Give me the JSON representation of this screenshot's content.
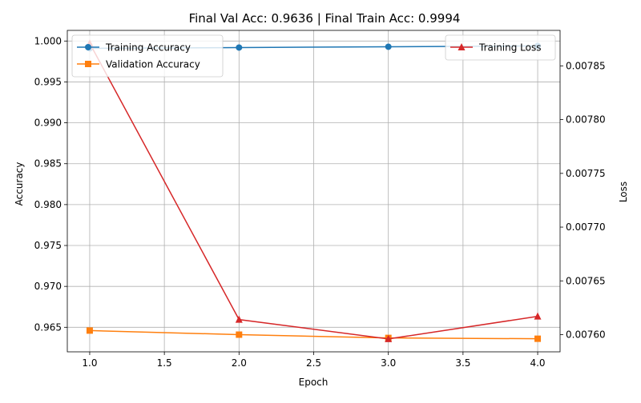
{
  "chart_data": {
    "type": "line",
    "title": "Final Val Acc: 0.9636 | Final Train Acc: 0.9994",
    "xlabel": "Epoch",
    "ylabel": "Accuracy",
    "y2label": "Loss",
    "x": [
      1,
      2,
      3,
      4
    ],
    "xlim": [
      0.85,
      4.15
    ],
    "xticks": [
      "1.0",
      "1.5",
      "2.0",
      "2.5",
      "3.0",
      "3.5",
      "4.0"
    ],
    "ylim": [
      0.962,
      1.0013
    ],
    "yticks": [
      "0.965",
      "0.970",
      "0.975",
      "0.980",
      "0.985",
      "0.990",
      "0.995",
      "1.000"
    ],
    "y2lim": [
      0.007584,
      0.007883
    ],
    "y2ticks": [
      "0.00760",
      "0.00765",
      "0.00770",
      "0.00775",
      "0.00780",
      "0.00785"
    ],
    "grid": true,
    "series": [
      {
        "name": "Training Accuracy",
        "axis": "left",
        "marker": "circle",
        "color": "#1f77b4",
        "values": [
          0.9991,
          0.9992,
          0.9993,
          0.9994
        ]
      },
      {
        "name": "Validation Accuracy",
        "axis": "left",
        "marker": "square",
        "color": "#ff7f0e",
        "values": [
          0.9646,
          0.9641,
          0.9637,
          0.9636
        ]
      },
      {
        "name": "Training Loss",
        "axis": "right",
        "marker": "triangle",
        "color": "#d62728",
        "values": [
          0.007871,
          0.007614,
          0.007596,
          0.007617
        ]
      }
    ],
    "legends": [
      {
        "placement": "upper-left",
        "series": [
          "Training Accuracy",
          "Validation Accuracy"
        ]
      },
      {
        "placement": "upper-right",
        "series": [
          "Training Loss"
        ]
      }
    ]
  }
}
